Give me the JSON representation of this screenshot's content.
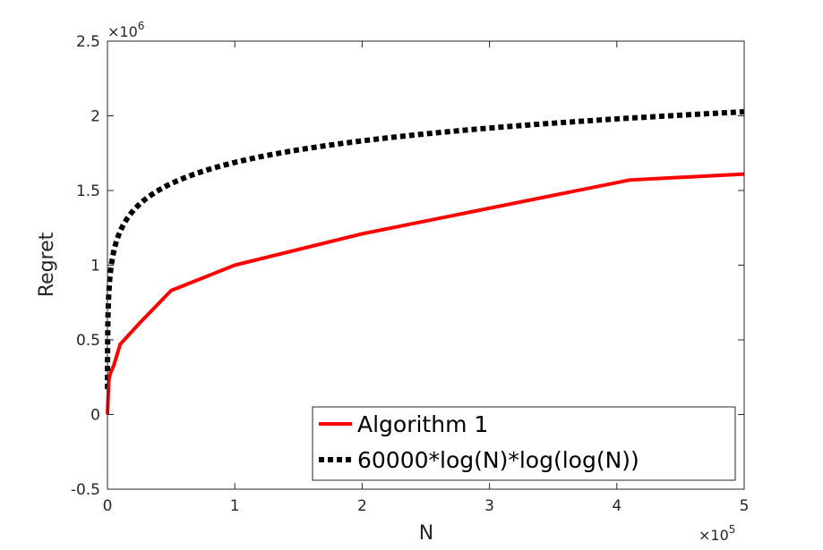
{
  "chart_data": {
    "type": "line",
    "title": "",
    "xlabel": "N",
    "ylabel": "Regret",
    "xlim": [
      0,
      500000
    ],
    "ylim": [
      -500000,
      2500000
    ],
    "x_multiplier_label": {
      "base": "×10",
      "exp": "5"
    },
    "y_multiplier_label": {
      "base": "×10",
      "exp": "6"
    },
    "x_ticks": [
      0,
      100000,
      200000,
      300000,
      400000,
      500000
    ],
    "x_tick_labels": [
      "0",
      "1",
      "2",
      "3",
      "4",
      "5"
    ],
    "y_ticks": [
      -500000,
      0,
      500000,
      1000000,
      1500000,
      2000000,
      2500000
    ],
    "y_tick_labels": [
      "-0.5",
      "0",
      "0.5",
      "1",
      "1.5",
      "2",
      "2.5"
    ],
    "grid": false,
    "legend_position": "bottom-right",
    "series": [
      {
        "name": "Algorithm 1",
        "color": "#ff0000",
        "style": "solid",
        "x": [
          0,
          1000,
          2000,
          5000,
          10000,
          25000,
          50000,
          100000,
          200000,
          410000,
          500000
        ],
        "y": [
          0,
          220000,
          270000,
          330000,
          470000,
          610000,
          830000,
          1000000,
          1210000,
          1570000,
          1610000
        ]
      },
      {
        "name": "60000*log(N)*log(log(N))",
        "color": "#000000",
        "style": "dotted",
        "formula_coefficient": 60000
      }
    ]
  }
}
